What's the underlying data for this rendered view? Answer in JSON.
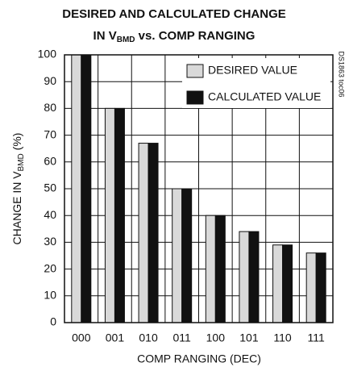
{
  "chart_data": {
    "type": "bar",
    "title": [
      "DESIRED AND CALCULATED CHANGE",
      "IN V",
      "BMD",
      " vs. COMP RANGING"
    ],
    "ylabel": [
      "CHANGE IN V",
      "BMD",
      " (%)"
    ],
    "xlabel": "COMP RANGING (DEC)",
    "watermark": "DS1863 toc06",
    "categories": [
      "000",
      "001",
      "010",
      "011",
      "100",
      "101",
      "110",
      "111"
    ],
    "series": [
      {
        "name": "DESIRED VALUE",
        "color": "#d9d9d9",
        "values": [
          100,
          80,
          67,
          50,
          40,
          34,
          29,
          26
        ]
      },
      {
        "name": "CALCULATED VALUE",
        "color": "#111111",
        "values": [
          100,
          80,
          67,
          50,
          40,
          34,
          29,
          26
        ]
      }
    ],
    "ylim": [
      0,
      100
    ],
    "yticks": [
      0,
      10,
      20,
      30,
      40,
      50,
      60,
      70,
      80,
      90,
      100
    ],
    "grid": true,
    "legend": "upper right"
  }
}
